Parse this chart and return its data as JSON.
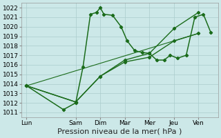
{
  "x_labels": [
    "Lun",
    "Sam",
    "Dim",
    "Mar",
    "Mer",
    "Jeu",
    "Ven"
  ],
  "x_positions": [
    0,
    2,
    3,
    4,
    5,
    6,
    7
  ],
  "xlim": [
    -0.2,
    7.8
  ],
  "lines": [
    {
      "x": [
        0,
        1.5,
        2,
        2.3,
        2.6,
        2.85,
        3.0,
        3.15,
        3.5,
        3.85,
        4.1,
        4.4,
        4.7,
        5.0,
        5.3,
        5.6,
        5.85,
        6.15,
        6.5,
        6.85,
        7.2,
        7.5
      ],
      "y": [
        1013.8,
        1011.3,
        1012.0,
        1015.8,
        1021.3,
        1021.5,
        1022.0,
        1021.3,
        1021.2,
        1020.0,
        1018.5,
        1017.5,
        1017.3,
        1017.2,
        1016.5,
        1016.5,
        1017.0,
        1016.7,
        1017.0,
        1021.0,
        1021.3,
        1019.4
      ],
      "color": "#1a6b1a",
      "linewidth": 1.1,
      "marker": "D",
      "markersize": 2.2
    },
    {
      "x": [
        0,
        2,
        3,
        4,
        5,
        6,
        7
      ],
      "y": [
        1013.8,
        1012.1,
        1014.8,
        1016.3,
        1016.8,
        1018.5,
        1019.3
      ],
      "color": "#1a6b1a",
      "linewidth": 1.0,
      "marker": "D",
      "markersize": 2.2
    },
    {
      "x": [
        0,
        2,
        3,
        4,
        5,
        6,
        7
      ],
      "y": [
        1013.8,
        1012.1,
        1014.8,
        1016.5,
        1017.2,
        1019.8,
        1021.5
      ],
      "color": "#1a6b1a",
      "linewidth": 1.0,
      "marker": "D",
      "markersize": 2.2
    },
    {
      "x": [
        0,
        7
      ],
      "y": [
        1013.8,
        1019.3
      ],
      "color": "#1a6b1a",
      "linewidth": 0.8,
      "marker": null,
      "markersize": 0
    }
  ],
  "ylim": [
    1010.5,
    1022.5
  ],
  "yticks": [
    1011,
    1012,
    1013,
    1014,
    1015,
    1016,
    1017,
    1018,
    1019,
    1020,
    1021,
    1022
  ],
  "xlabel": "Pression niveau de la mer( hPa )",
  "background_color": "#cce8e8",
  "grid_color": "#aacccc",
  "line_color": "#1a6b1a",
  "xlabel_fontsize": 8,
  "tick_fontsize": 6.5
}
